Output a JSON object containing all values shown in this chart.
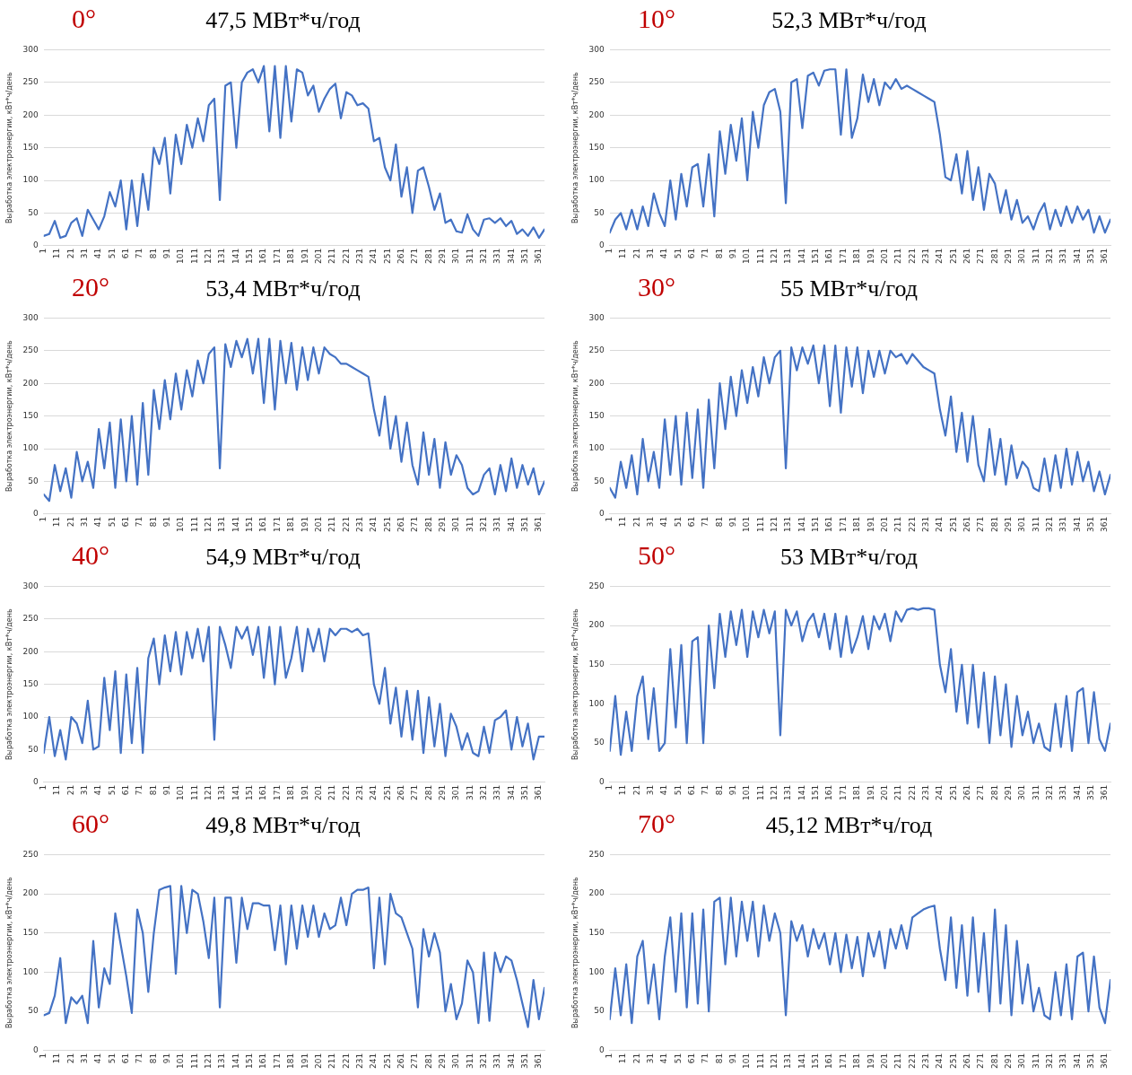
{
  "chart_data": [
    {
      "type": "line",
      "title": "0°",
      "subtitle": "47,5 МВт*ч/год",
      "ylabel": "Выработка электроэнергии, кВт*ч/день",
      "grid": "y",
      "marker": "none",
      "line_style": "solid",
      "xlim": [
        1,
        365
      ],
      "ylim": [
        0,
        300
      ],
      "yticks": [
        0,
        50,
        100,
        150,
        200,
        250,
        300
      ],
      "xticks": [
        1,
        11,
        21,
        31,
        41,
        51,
        61,
        71,
        81,
        91,
        101,
        111,
        121,
        131,
        141,
        151,
        161,
        171,
        181,
        191,
        201,
        211,
        221,
        231,
        241,
        251,
        261,
        271,
        281,
        291,
        301,
        311,
        321,
        331,
        341,
        351,
        361
      ],
      "x": [
        1,
        5,
        9,
        13,
        17,
        21,
        25,
        29,
        33,
        37,
        41,
        45,
        49,
        53,
        57,
        61,
        65,
        69,
        73,
        77,
        81,
        85,
        89,
        93,
        97,
        101,
        105,
        109,
        113,
        117,
        121,
        125,
        129,
        133,
        137,
        141,
        145,
        149,
        153,
        157,
        161,
        165,
        169,
        173,
        177,
        181,
        185,
        189,
        193,
        197,
        201,
        205,
        209,
        213,
        217,
        221,
        225,
        229,
        233,
        237,
        241,
        245,
        249,
        253,
        257,
        261,
        265,
        269,
        273,
        277,
        281,
        285,
        289,
        293,
        297,
        301,
        305,
        309,
        313,
        317,
        321,
        325,
        329,
        333,
        337,
        341,
        345,
        349,
        353,
        357,
        361,
        365
      ],
      "series": [
        {
          "color": "#4472c4",
          "values": [
            15,
            18,
            38,
            12,
            15,
            35,
            42,
            15,
            55,
            40,
            25,
            45,
            82,
            60,
            100,
            25,
            100,
            30,
            110,
            55,
            150,
            125,
            165,
            80,
            170,
            125,
            185,
            150,
            195,
            160,
            215,
            225,
            70,
            245,
            250,
            150,
            250,
            265,
            270,
            250,
            275,
            175,
            275,
            165,
            275,
            190,
            270,
            265,
            230,
            245,
            205,
            225,
            240,
            248,
            195,
            235,
            230,
            215,
            218,
            210,
            160,
            165,
            120,
            100,
            155,
            75,
            120,
            50,
            115,
            120,
            90,
            55,
            80,
            35,
            40,
            22,
            20,
            48,
            25,
            15,
            40,
            42,
            35,
            42,
            30,
            38,
            18,
            25,
            15,
            28,
            12,
            25
          ]
        }
      ]
    },
    {
      "type": "line",
      "title": "10°",
      "subtitle": "52,3 МВт*ч/год",
      "ylabel": "Выработка электроэнергии, кВт*ч/день",
      "grid": "y",
      "marker": "none",
      "line_style": "solid",
      "xlim": [
        1,
        365
      ],
      "ylim": [
        0,
        300
      ],
      "yticks": [
        0,
        50,
        100,
        150,
        200,
        250,
        300
      ],
      "xticks": [
        1,
        11,
        21,
        31,
        41,
        51,
        61,
        71,
        81,
        91,
        101,
        111,
        121,
        131,
        141,
        151,
        161,
        171,
        181,
        191,
        201,
        211,
        221,
        231,
        241,
        251,
        261,
        271,
        281,
        291,
        301,
        311,
        321,
        331,
        341,
        351,
        361
      ],
      "x": [
        1,
        5,
        9,
        13,
        17,
        21,
        25,
        29,
        33,
        37,
        41,
        45,
        49,
        53,
        57,
        61,
        65,
        69,
        73,
        77,
        81,
        85,
        89,
        93,
        97,
        101,
        105,
        109,
        113,
        117,
        121,
        125,
        129,
        133,
        137,
        141,
        145,
        149,
        153,
        157,
        161,
        165,
        169,
        173,
        177,
        181,
        185,
        189,
        193,
        197,
        201,
        205,
        209,
        213,
        217,
        221,
        225,
        229,
        233,
        237,
        241,
        245,
        249,
        253,
        257,
        261,
        265,
        269,
        273,
        277,
        281,
        285,
        289,
        293,
        297,
        301,
        305,
        309,
        313,
        317,
        321,
        325,
        329,
        333,
        337,
        341,
        345,
        349,
        353,
        357,
        361,
        365
      ],
      "series": [
        {
          "color": "#4472c4",
          "values": [
            20,
            40,
            50,
            25,
            55,
            25,
            60,
            30,
            80,
            50,
            30,
            100,
            40,
            110,
            60,
            120,
            125,
            60,
            140,
            45,
            175,
            110,
            185,
            130,
            195,
            100,
            205,
            150,
            215,
            235,
            240,
            205,
            65,
            250,
            255,
            180,
            260,
            265,
            245,
            268,
            270,
            270,
            170,
            270,
            165,
            195,
            262,
            220,
            255,
            215,
            250,
            240,
            255,
            240,
            245,
            240,
            235,
            230,
            225,
            220,
            170,
            105,
            100,
            140,
            80,
            145,
            70,
            120,
            55,
            110,
            95,
            50,
            85,
            40,
            70,
            35,
            45,
            25,
            50,
            65,
            25,
            55,
            30,
            60,
            35,
            60,
            40,
            55,
            20,
            45,
            20,
            40
          ]
        }
      ]
    },
    {
      "type": "line",
      "title": "20°",
      "subtitle": "53,4 МВт*ч/год",
      "ylabel": "Выработка электроэнергии, кВт*ч/день",
      "grid": "y",
      "marker": "none",
      "line_style": "solid",
      "xlim": [
        1,
        365
      ],
      "ylim": [
        0,
        300
      ],
      "yticks": [
        0,
        50,
        100,
        150,
        200,
        250,
        300
      ],
      "xticks": [
        1,
        11,
        21,
        31,
        41,
        51,
        61,
        71,
        81,
        91,
        101,
        111,
        121,
        131,
        141,
        151,
        161,
        171,
        181,
        191,
        201,
        211,
        221,
        231,
        241,
        251,
        261,
        271,
        281,
        291,
        301,
        311,
        321,
        331,
        341,
        351,
        361
      ],
      "x": [
        1,
        5,
        9,
        13,
        17,
        21,
        25,
        29,
        33,
        37,
        41,
        45,
        49,
        53,
        57,
        61,
        65,
        69,
        73,
        77,
        81,
        85,
        89,
        93,
        97,
        101,
        105,
        109,
        113,
        117,
        121,
        125,
        129,
        133,
        137,
        141,
        145,
        149,
        153,
        157,
        161,
        165,
        169,
        173,
        177,
        181,
        185,
        189,
        193,
        197,
        201,
        205,
        209,
        213,
        217,
        221,
        225,
        229,
        233,
        237,
        241,
        245,
        249,
        253,
        257,
        261,
        265,
        269,
        273,
        277,
        281,
        285,
        289,
        293,
        297,
        301,
        305,
        309,
        313,
        317,
        321,
        325,
        329,
        333,
        337,
        341,
        345,
        349,
        353,
        357,
        361,
        365
      ],
      "series": [
        {
          "color": "#4472c4",
          "values": [
            30,
            20,
            75,
            35,
            70,
            25,
            95,
            50,
            80,
            40,
            130,
            70,
            140,
            40,
            145,
            50,
            150,
            45,
            170,
            60,
            190,
            130,
            205,
            145,
            215,
            160,
            220,
            180,
            235,
            200,
            245,
            255,
            70,
            260,
            225,
            265,
            240,
            268,
            215,
            268,
            170,
            268,
            160,
            265,
            200,
            262,
            190,
            255,
            205,
            255,
            215,
            255,
            245,
            240,
            230,
            230,
            225,
            220,
            215,
            210,
            160,
            120,
            180,
            100,
            150,
            80,
            140,
            75,
            45,
            125,
            60,
            115,
            40,
            110,
            60,
            90,
            75,
            40,
            30,
            35,
            60,
            70,
            30,
            75,
            35,
            85,
            40,
            75,
            45,
            70,
            30,
            50
          ]
        }
      ]
    },
    {
      "type": "line",
      "title": "30°",
      "subtitle": "55 МВт*ч/год",
      "ylabel": "Выработка электроэнергии, кВт*ч/день",
      "grid": "y",
      "marker": "none",
      "line_style": "solid",
      "xlim": [
        1,
        365
      ],
      "ylim": [
        0,
        300
      ],
      "yticks": [
        0,
        50,
        100,
        150,
        200,
        250,
        300
      ],
      "xticks": [
        1,
        11,
        21,
        31,
        41,
        51,
        61,
        71,
        81,
        91,
        101,
        111,
        121,
        131,
        141,
        151,
        161,
        171,
        181,
        191,
        201,
        211,
        221,
        231,
        241,
        251,
        261,
        271,
        281,
        291,
        301,
        311,
        321,
        331,
        341,
        351,
        361
      ],
      "x": [
        1,
        5,
        9,
        13,
        17,
        21,
        25,
        29,
        33,
        37,
        41,
        45,
        49,
        53,
        57,
        61,
        65,
        69,
        73,
        77,
        81,
        85,
        89,
        93,
        97,
        101,
        105,
        109,
        113,
        117,
        121,
        125,
        129,
        133,
        137,
        141,
        145,
        149,
        153,
        157,
        161,
        165,
        169,
        173,
        177,
        181,
        185,
        189,
        193,
        197,
        201,
        205,
        209,
        213,
        217,
        221,
        225,
        229,
        233,
        237,
        241,
        245,
        249,
        253,
        257,
        261,
        265,
        269,
        273,
        277,
        281,
        285,
        289,
        293,
        297,
        301,
        305,
        309,
        313,
        317,
        321,
        325,
        329,
        333,
        337,
        341,
        345,
        349,
        353,
        357,
        361,
        365
      ],
      "series": [
        {
          "color": "#4472c4",
          "values": [
            40,
            25,
            80,
            40,
            90,
            30,
            115,
            50,
            95,
            40,
            145,
            60,
            150,
            45,
            155,
            55,
            160,
            40,
            175,
            70,
            200,
            130,
            210,
            150,
            220,
            170,
            225,
            180,
            240,
            200,
            240,
            250,
            70,
            255,
            220,
            255,
            230,
            258,
            200,
            258,
            165,
            258,
            155,
            255,
            195,
            255,
            185,
            250,
            210,
            250,
            215,
            250,
            240,
            245,
            230,
            245,
            235,
            225,
            220,
            215,
            160,
            120,
            180,
            95,
            155,
            80,
            150,
            75,
            50,
            130,
            60,
            115,
            45,
            105,
            55,
            80,
            70,
            40,
            35,
            85,
            35,
            90,
            40,
            100,
            45,
            95,
            50,
            80,
            35,
            65,
            30,
            60
          ]
        }
      ]
    },
    {
      "type": "line",
      "title": "40°",
      "subtitle": "54,9 МВт*ч/год",
      "ylabel": "Выработка электроэнергии, кВт*ч/день",
      "grid": "y",
      "marker": "none",
      "line_style": "solid",
      "xlim": [
        1,
        365
      ],
      "ylim": [
        0,
        300
      ],
      "yticks": [
        0,
        50,
        100,
        150,
        200,
        250,
        300
      ],
      "xticks": [
        1,
        11,
        21,
        31,
        41,
        51,
        61,
        71,
        81,
        91,
        101,
        111,
        121,
        131,
        141,
        151,
        161,
        171,
        181,
        191,
        201,
        211,
        221,
        231,
        241,
        251,
        261,
        271,
        281,
        291,
        301,
        311,
        321,
        331,
        341,
        351,
        361
      ],
      "x": [
        1,
        5,
        9,
        13,
        17,
        21,
        25,
        29,
        33,
        37,
        41,
        45,
        49,
        53,
        57,
        61,
        65,
        69,
        73,
        77,
        81,
        85,
        89,
        93,
        97,
        101,
        105,
        109,
        113,
        117,
        121,
        125,
        129,
        133,
        137,
        141,
        145,
        149,
        153,
        157,
        161,
        165,
        169,
        173,
        177,
        181,
        185,
        189,
        193,
        197,
        201,
        205,
        209,
        213,
        217,
        221,
        225,
        229,
        233,
        237,
        241,
        245,
        249,
        253,
        257,
        261,
        265,
        269,
        273,
        277,
        281,
        285,
        289,
        293,
        297,
        301,
        305,
        309,
        313,
        317,
        321,
        325,
        329,
        333,
        337,
        341,
        345,
        349,
        353,
        357,
        361,
        365
      ],
      "series": [
        {
          "color": "#4472c4",
          "values": [
            45,
            100,
            40,
            80,
            35,
            100,
            90,
            60,
            125,
            50,
            55,
            160,
            80,
            170,
            45,
            165,
            60,
            175,
            45,
            190,
            220,
            150,
            225,
            170,
            230,
            165,
            230,
            190,
            235,
            185,
            238,
            65,
            238,
            210,
            175,
            238,
            220,
            238,
            195,
            238,
            160,
            238,
            150,
            238,
            160,
            190,
            238,
            170,
            235,
            200,
            235,
            185,
            235,
            225,
            235,
            235,
            230,
            235,
            225,
            228,
            150,
            120,
            175,
            90,
            145,
            70,
            140,
            65,
            140,
            45,
            130,
            55,
            120,
            40,
            105,
            85,
            50,
            75,
            45,
            40,
            85,
            45,
            95,
            100,
            110,
            50,
            100,
            55,
            90,
            35,
            70,
            70
          ]
        }
      ]
    },
    {
      "type": "line",
      "title": "50°",
      "subtitle": "53 МВт*ч/год",
      "ylabel": "Выработка электроэнергии, кВт*ч/день",
      "grid": "y",
      "marker": "none",
      "line_style": "solid",
      "xlim": [
        1,
        365
      ],
      "ylim": [
        0,
        250
      ],
      "yticks": [
        0,
        50,
        100,
        150,
        200,
        250
      ],
      "xticks": [
        1,
        11,
        21,
        31,
        41,
        51,
        61,
        71,
        81,
        91,
        101,
        111,
        121,
        131,
        141,
        151,
        161,
        171,
        181,
        191,
        201,
        211,
        221,
        231,
        241,
        251,
        261,
        271,
        281,
        291,
        301,
        311,
        321,
        331,
        341,
        351,
        361
      ],
      "x": [
        1,
        5,
        9,
        13,
        17,
        21,
        25,
        29,
        33,
        37,
        41,
        45,
        49,
        53,
        57,
        61,
        65,
        69,
        73,
        77,
        81,
        85,
        89,
        93,
        97,
        101,
        105,
        109,
        113,
        117,
        121,
        125,
        129,
        133,
        137,
        141,
        145,
        149,
        153,
        157,
        161,
        165,
        169,
        173,
        177,
        181,
        185,
        189,
        193,
        197,
        201,
        205,
        209,
        213,
        217,
        221,
        225,
        229,
        233,
        237,
        241,
        245,
        249,
        253,
        257,
        261,
        265,
        269,
        273,
        277,
        281,
        285,
        289,
        293,
        297,
        301,
        305,
        309,
        313,
        317,
        321,
        325,
        329,
        333,
        337,
        341,
        345,
        349,
        353,
        357,
        361,
        365
      ],
      "series": [
        {
          "color": "#4472c4",
          "values": [
            40,
            110,
            35,
            90,
            40,
            110,
            135,
            55,
            120,
            40,
            50,
            170,
            70,
            175,
            50,
            180,
            185,
            50,
            200,
            120,
            215,
            160,
            218,
            175,
            220,
            160,
            218,
            185,
            220,
            190,
            218,
            60,
            220,
            200,
            218,
            180,
            205,
            215,
            185,
            215,
            170,
            215,
            160,
            212,
            165,
            185,
            212,
            170,
            212,
            195,
            215,
            180,
            218,
            205,
            220,
            222,
            220,
            222,
            222,
            220,
            150,
            115,
            170,
            90,
            150,
            75,
            150,
            70,
            140,
            50,
            135,
            60,
            125,
            45,
            110,
            60,
            90,
            50,
            75,
            45,
            40,
            100,
            45,
            110,
            40,
            115,
            120,
            50,
            115,
            55,
            40,
            75
          ]
        }
      ]
    },
    {
      "type": "line",
      "title": "60°",
      "subtitle": "49,8 МВт*ч/год",
      "ylabel": "Выработка электроэнергии, кВт*ч/день",
      "grid": "y",
      "marker": "none",
      "line_style": "solid",
      "xlim": [
        1,
        365
      ],
      "ylim": [
        0,
        250
      ],
      "yticks": [
        0,
        50,
        100,
        150,
        200,
        250
      ],
      "xticks": [
        1,
        11,
        21,
        31,
        41,
        51,
        61,
        71,
        81,
        91,
        101,
        111,
        121,
        131,
        141,
        151,
        161,
        171,
        181,
        191,
        201,
        211,
        221,
        231,
        241,
        251,
        261,
        271,
        281,
        291,
        301,
        311,
        321,
        331,
        341,
        351,
        361
      ],
      "x": [
        1,
        5,
        9,
        13,
        17,
        21,
        25,
        29,
        33,
        37,
        41,
        45,
        49,
        53,
        57,
        61,
        65,
        69,
        73,
        77,
        81,
        85,
        89,
        93,
        97,
        101,
        105,
        109,
        113,
        117,
        121,
        125,
        129,
        133,
        137,
        141,
        145,
        149,
        153,
        157,
        161,
        165,
        169,
        173,
        177,
        181,
        185,
        189,
        193,
        197,
        201,
        205,
        209,
        213,
        217,
        221,
        225,
        229,
        233,
        237,
        241,
        245,
        249,
        253,
        257,
        261,
        265,
        269,
        273,
        277,
        281,
        285,
        289,
        293,
        297,
        301,
        305,
        309,
        313,
        317,
        321,
        325,
        329,
        333,
        337,
        341,
        345,
        349,
        353,
        357,
        361,
        365
      ],
      "series": [
        {
          "color": "#4472c4",
          "values": [
            45,
            48,
            70,
            118,
            35,
            68,
            60,
            70,
            35,
            140,
            55,
            105,
            85,
            175,
            135,
            95,
            48,
            180,
            150,
            75,
            150,
            205,
            208,
            210,
            98,
            210,
            150,
            205,
            200,
            165,
            118,
            195,
            55,
            195,
            195,
            112,
            195,
            155,
            188,
            188,
            185,
            185,
            128,
            185,
            110,
            185,
            130,
            185,
            145,
            185,
            145,
            175,
            155,
            160,
            195,
            160,
            200,
            205,
            205,
            208,
            105,
            195,
            110,
            200,
            175,
            170,
            150,
            130,
            55,
            155,
            120,
            150,
            125,
            50,
            85,
            40,
            60,
            115,
            100,
            35,
            125,
            38,
            125,
            100,
            120,
            115,
            90,
            60,
            30,
            90,
            40,
            80
          ]
        }
      ]
    },
    {
      "type": "line",
      "title": "70°",
      "subtitle": "45,12 МВт*ч/год",
      "ylabel": "Выработка электроэнергии, кВт*ч/день",
      "grid": "y",
      "marker": "none",
      "line_style": "solid",
      "xlim": [
        1,
        365
      ],
      "ylim": [
        0,
        250
      ],
      "yticks": [
        0,
        50,
        100,
        150,
        200,
        250
      ],
      "xticks": [
        1,
        11,
        21,
        31,
        41,
        51,
        61,
        71,
        81,
        91,
        101,
        111,
        121,
        131,
        141,
        151,
        161,
        171,
        181,
        191,
        201,
        211,
        221,
        231,
        241,
        251,
        261,
        271,
        281,
        291,
        301,
        311,
        321,
        331,
        341,
        351,
        361
      ],
      "x": [
        1,
        5,
        9,
        13,
        17,
        21,
        25,
        29,
        33,
        37,
        41,
        45,
        49,
        53,
        57,
        61,
        65,
        69,
        73,
        77,
        81,
        85,
        89,
        93,
        97,
        101,
        105,
        109,
        113,
        117,
        121,
        125,
        129,
        133,
        137,
        141,
        145,
        149,
        153,
        157,
        161,
        165,
        169,
        173,
        177,
        181,
        185,
        189,
        193,
        197,
        201,
        205,
        209,
        213,
        217,
        221,
        225,
        229,
        233,
        237,
        241,
        245,
        249,
        253,
        257,
        261,
        265,
        269,
        273,
        277,
        281,
        285,
        289,
        293,
        297,
        301,
        305,
        309,
        313,
        317,
        321,
        325,
        329,
        333,
        337,
        341,
        345,
        349,
        353,
        357,
        361,
        365
      ],
      "series": [
        {
          "color": "#4472c4",
          "values": [
            40,
            105,
            45,
            110,
            35,
            120,
            140,
            60,
            110,
            40,
            120,
            170,
            75,
            175,
            55,
            175,
            60,
            180,
            50,
            190,
            195,
            110,
            195,
            120,
            190,
            140,
            190,
            120,
            185,
            140,
            175,
            150,
            45,
            165,
            140,
            160,
            120,
            155,
            130,
            150,
            110,
            150,
            100,
            148,
            105,
            145,
            95,
            150,
            120,
            152,
            105,
            155,
            130,
            160,
            130,
            170,
            175,
            180,
            183,
            185,
            130,
            90,
            170,
            80,
            160,
            70,
            170,
            75,
            150,
            50,
            180,
            60,
            160,
            45,
            140,
            60,
            110,
            50,
            80,
            45,
            40,
            100,
            45,
            110,
            40,
            120,
            125,
            50,
            120,
            55,
            35,
            90
          ]
        }
      ]
    }
  ]
}
